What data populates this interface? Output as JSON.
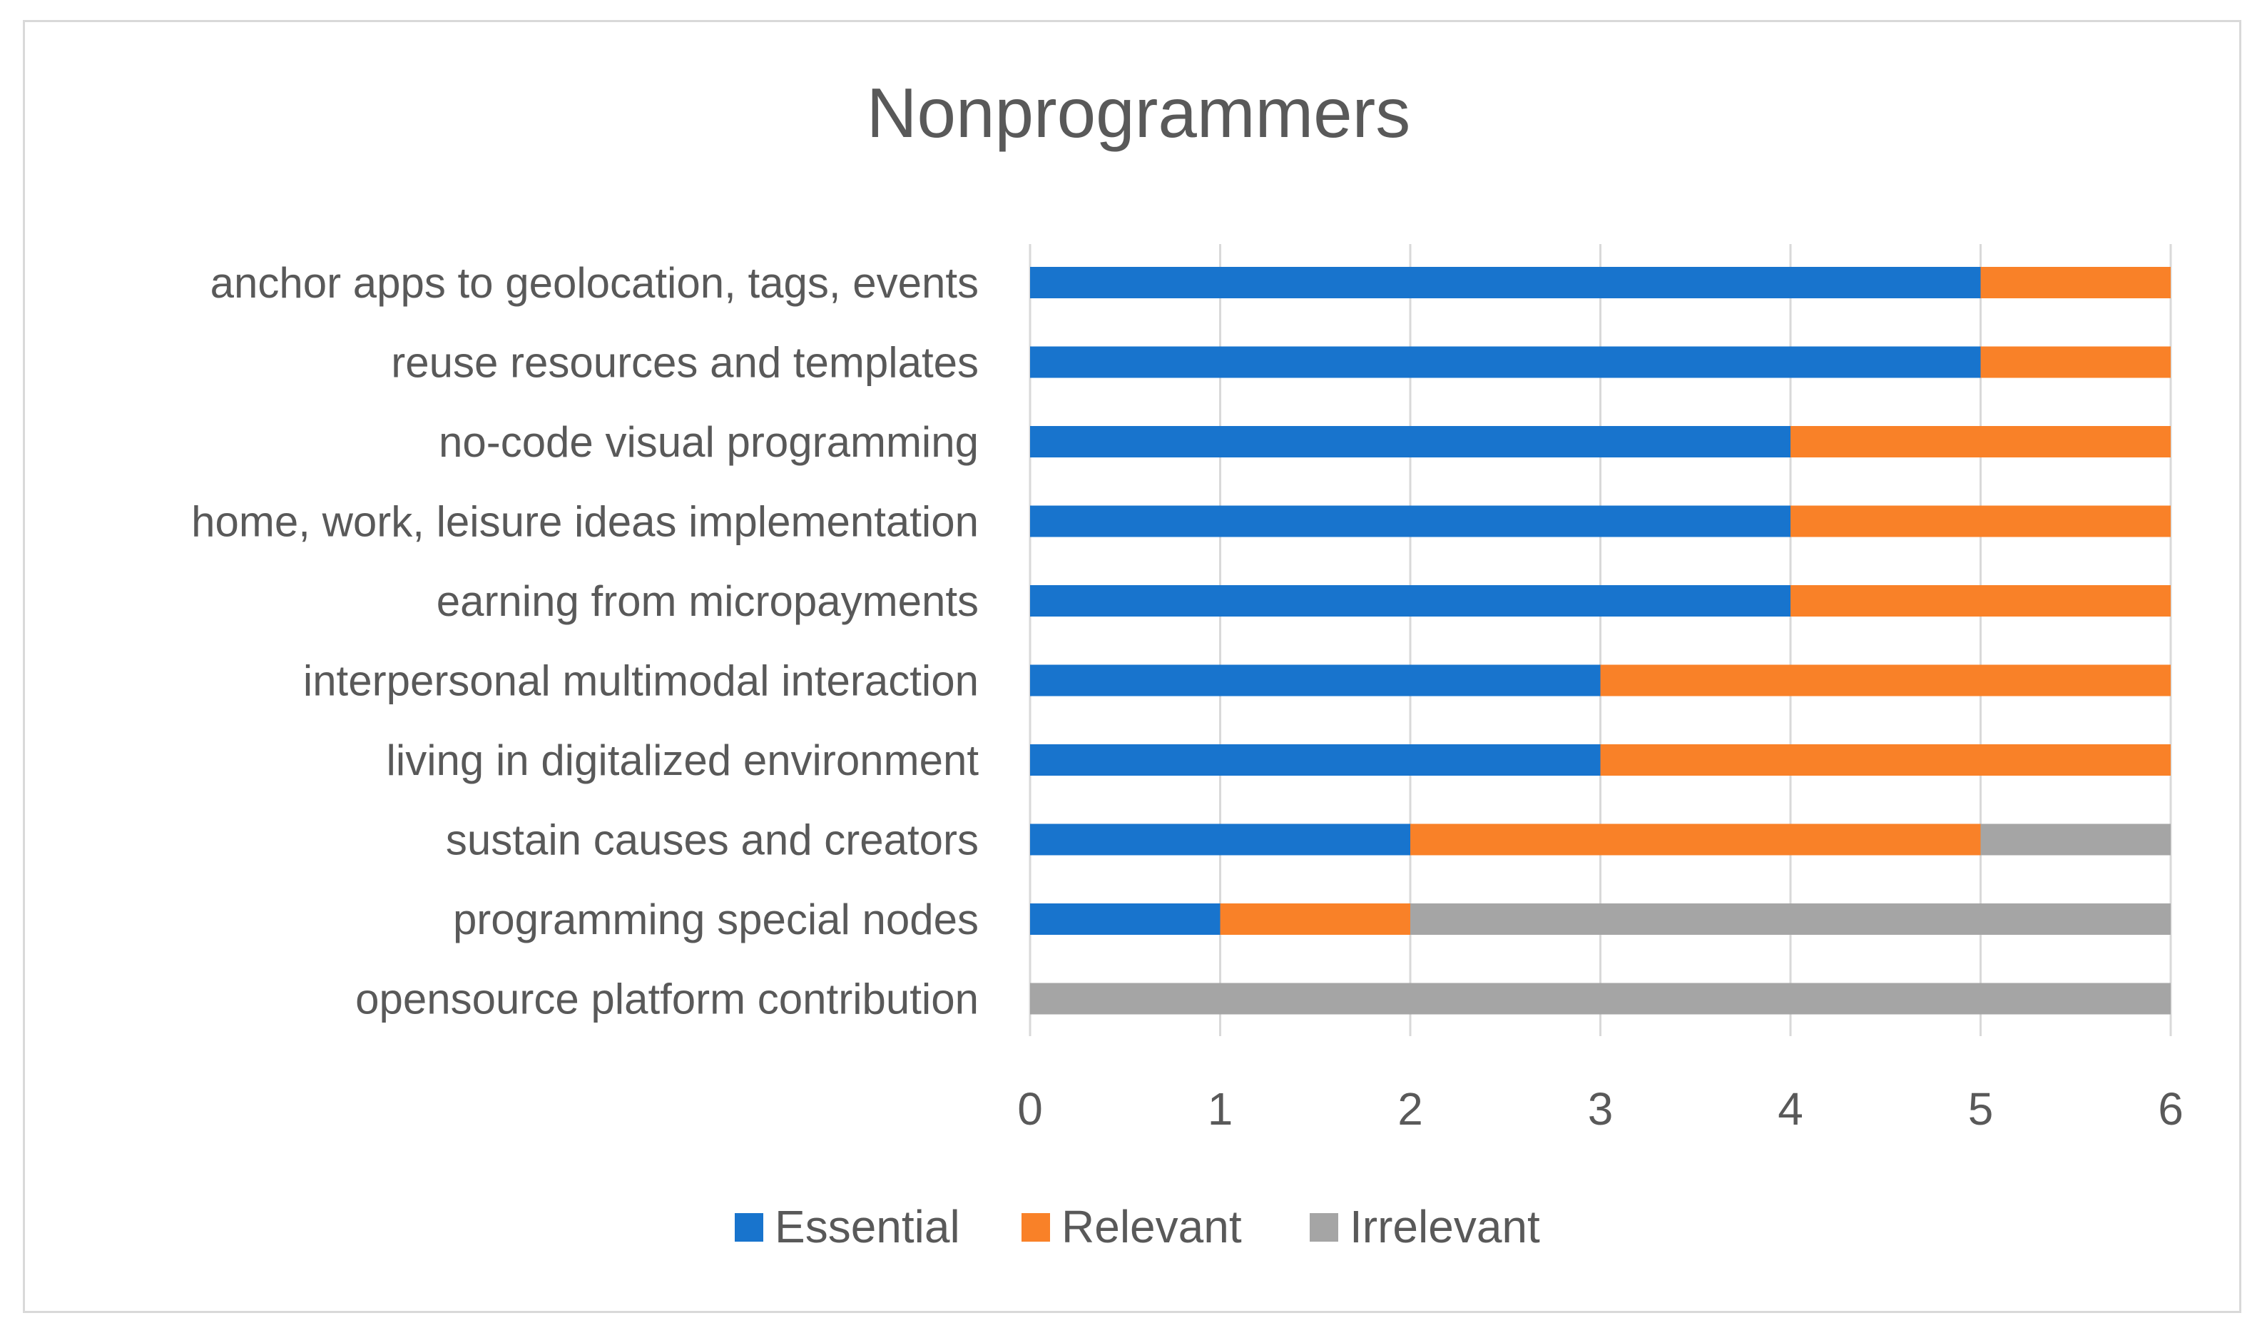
{
  "chart_data": {
    "type": "bar",
    "orientation": "horizontal",
    "stacked": true,
    "title": "Nonprogrammers",
    "xlabel": "",
    "ylabel": "",
    "xlim": [
      0,
      6
    ],
    "xticks": [
      "0",
      "1",
      "2",
      "3",
      "4",
      "5",
      "6"
    ],
    "grid": true,
    "legend_position": "bottom",
    "categories": [
      "anchor apps to geolocation, tags, events",
      "reuse resources and templates",
      "no-code visual programming",
      "home, work, leisure ideas implementation",
      "earning from micropayments",
      "interpersonal multimodal interaction",
      "living in digitalized environment",
      "sustain causes and creators",
      "programming special nodes",
      "opensource platform contribution"
    ],
    "series": [
      {
        "name": "Essential",
        "color": "#1874cd",
        "values": [
          5,
          5,
          4,
          4,
          4,
          3,
          3,
          2,
          1,
          0
        ]
      },
      {
        "name": "Relevant",
        "color": "#f98128",
        "values": [
          1,
          1,
          2,
          2,
          2,
          3,
          3,
          3,
          1,
          0
        ]
      },
      {
        "name": "Irrelevant",
        "color": "#a5a5a5",
        "values": [
          0,
          0,
          0,
          0,
          0,
          0,
          0,
          1,
          4,
          6
        ]
      }
    ]
  }
}
